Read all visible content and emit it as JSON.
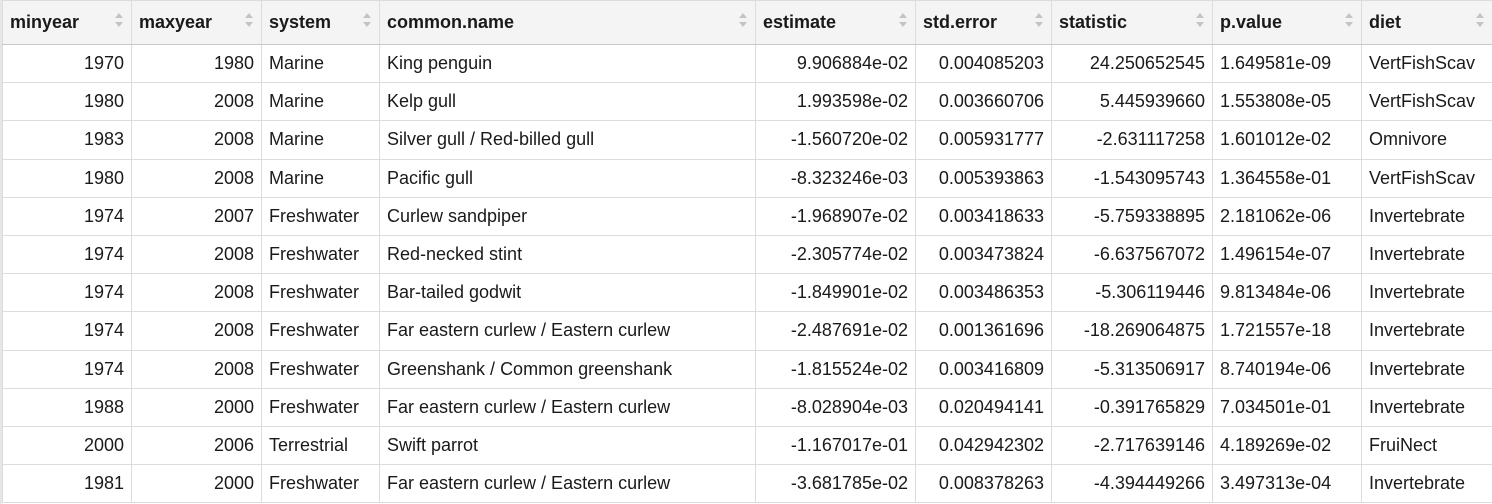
{
  "table": {
    "columns": [
      {
        "key": "minyear",
        "label": "minyear",
        "align": "num"
      },
      {
        "key": "maxyear",
        "label": "maxyear",
        "align": "num"
      },
      {
        "key": "system",
        "label": "system",
        "align": "txt"
      },
      {
        "key": "common_name",
        "label": "common.name",
        "align": "txt"
      },
      {
        "key": "estimate",
        "label": "estimate",
        "align": "num"
      },
      {
        "key": "std_error",
        "label": "std.error",
        "align": "num"
      },
      {
        "key": "statistic",
        "label": "statistic",
        "align": "num"
      },
      {
        "key": "p_value",
        "label": "p.value",
        "align": "txt"
      },
      {
        "key": "diet",
        "label": "diet",
        "align": "txt"
      }
    ],
    "rows": [
      [
        "1970",
        "1980",
        "Marine",
        "King penguin",
        "9.906884e-02",
        "0.004085203",
        "24.250652545",
        "1.649581e-09",
        "VertFishScav"
      ],
      [
        "1980",
        "2008",
        "Marine",
        "Kelp gull",
        "1.993598e-02",
        "0.003660706",
        "5.445939660",
        "1.553808e-05",
        "VertFishScav"
      ],
      [
        "1983",
        "2008",
        "Marine",
        "Silver gull / Red-billed gull",
        "-1.560720e-02",
        "0.005931777",
        "-2.631117258",
        "1.601012e-02",
        "Omnivore"
      ],
      [
        "1980",
        "2008",
        "Marine",
        "Pacific gull",
        "-8.323246e-03",
        "0.005393863",
        "-1.543095743",
        "1.364558e-01",
        "VertFishScav"
      ],
      [
        "1974",
        "2007",
        "Freshwater",
        "Curlew sandpiper",
        "-1.968907e-02",
        "0.003418633",
        "-5.759338895",
        "2.181062e-06",
        "Invertebrate"
      ],
      [
        "1974",
        "2008",
        "Freshwater",
        "Red-necked stint",
        "-2.305774e-02",
        "0.003473824",
        "-6.637567072",
        "1.496154e-07",
        "Invertebrate"
      ],
      [
        "1974",
        "2008",
        "Freshwater",
        "Bar-tailed godwit",
        "-1.849901e-02",
        "0.003486353",
        "-5.306119446",
        "9.813484e-06",
        "Invertebrate"
      ],
      [
        "1974",
        "2008",
        "Freshwater",
        "Far eastern curlew / Eastern curlew",
        "-2.487691e-02",
        "0.001361696",
        "-18.269064875",
        "1.721557e-18",
        "Invertebrate"
      ],
      [
        "1974",
        "2008",
        "Freshwater",
        "Greenshank / Common greenshank",
        "-1.815524e-02",
        "0.003416809",
        "-5.313506917",
        "8.740194e-06",
        "Invertebrate"
      ],
      [
        "1988",
        "2000",
        "Freshwater",
        "Far eastern curlew / Eastern curlew",
        "-8.028904e-03",
        "0.020494141",
        "-0.391765829",
        "7.034501e-01",
        "Invertebrate"
      ],
      [
        "2000",
        "2006",
        "Terrestrial",
        "Swift parrot",
        "-1.167017e-01",
        "0.042942302",
        "-2.717639146",
        "4.189269e-02",
        "FruiNect"
      ],
      [
        "1981",
        "2000",
        "Freshwater",
        "Far eastern curlew / Eastern curlew",
        "-3.681785e-02",
        "0.008378263",
        "-4.394449266",
        "3.497313e-04",
        "Invertebrate"
      ]
    ]
  }
}
